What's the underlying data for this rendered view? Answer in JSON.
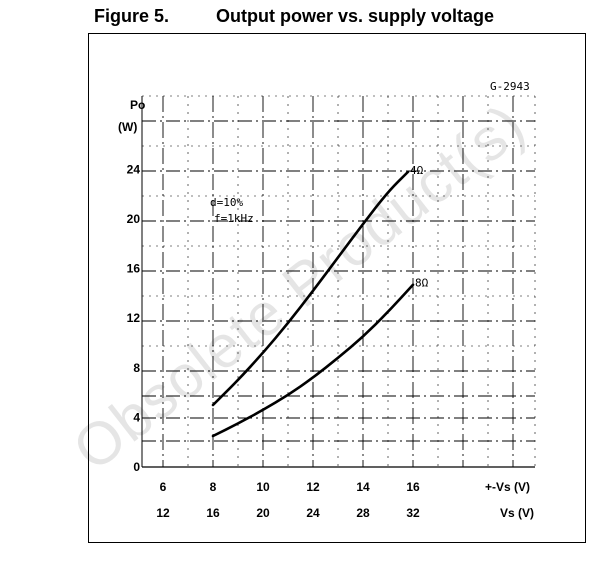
{
  "figure": {
    "number": "Figure 5.",
    "title": "Output power vs. supply voltage",
    "code": "G-2943",
    "watermark": "Obsolete Product(s)"
  },
  "chart_data": {
    "type": "line",
    "title": "Output power vs. supply voltage",
    "ylabel": "Po",
    "yunit": "(W)",
    "y_ticks": [
      "0",
      "4",
      "8",
      "12",
      "16",
      "20",
      "24"
    ],
    "ylim": [
      0,
      28
    ],
    "xlabel": "+-Vs (V)",
    "xlabel2": "Vs (V)",
    "x_ticks": [
      "6",
      "8",
      "10",
      "12",
      "14",
      "16"
    ],
    "x2_ticks": [
      "12",
      "16",
      "20",
      "24",
      "28",
      "32"
    ],
    "xlim": [
      6,
      17.5
    ],
    "grid": true,
    "annotations": [
      "d=10%",
      "f=1kHz"
    ],
    "series": [
      {
        "name": "4Ω",
        "x": [
          8,
          9,
          10,
          11,
          12,
          13,
          14,
          15,
          15.8
        ],
        "y": [
          5.0,
          7.0,
          9.2,
          11.6,
          14.2,
          16.9,
          19.6,
          22.2,
          23.8
        ]
      },
      {
        "name": "8Ω",
        "x": [
          8,
          9,
          10,
          11,
          12,
          13,
          14,
          15,
          16
        ],
        "y": [
          2.5,
          3.5,
          4.6,
          5.8,
          7.2,
          8.8,
          10.5,
          12.5,
          14.7
        ]
      }
    ]
  }
}
